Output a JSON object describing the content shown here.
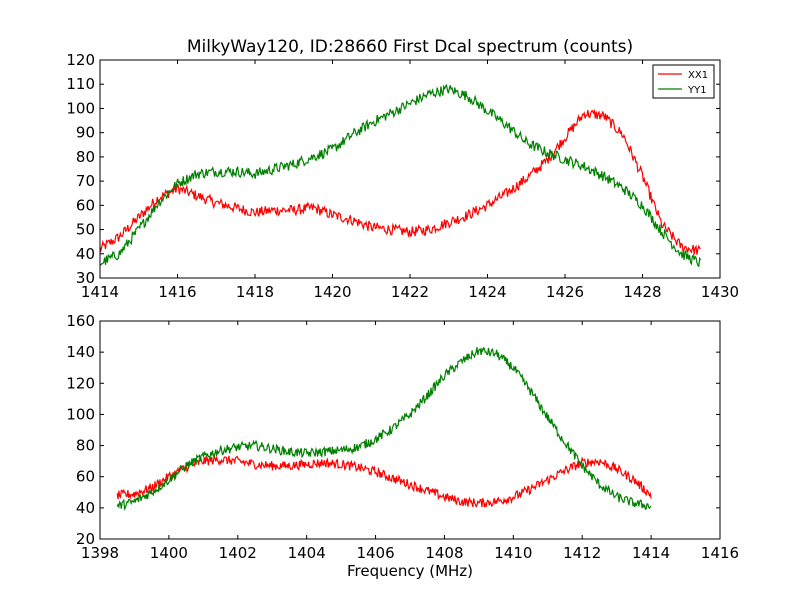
{
  "title": "MilkyWay120, ID:28660 First Dcal spectrum (counts)",
  "chart_data": [
    {
      "type": "line",
      "title": "MilkyWay120, ID:28660 First Dcal spectrum (counts)",
      "xlabel": "",
      "ylabel": "",
      "xlim": [
        1414,
        1430
      ],
      "ylim": [
        30,
        120
      ],
      "xticks": [
        1414,
        1416,
        1418,
        1420,
        1422,
        1424,
        1426,
        1428,
        1430
      ],
      "yticks": [
        30,
        40,
        50,
        60,
        70,
        80,
        90,
        100,
        110,
        120
      ],
      "grid": false,
      "legend": "top-right",
      "series": [
        {
          "name": "XX1",
          "color": "#ff0000",
          "x": [
            1414.0,
            1414.5,
            1415.0,
            1415.5,
            1416.0,
            1416.5,
            1417.0,
            1417.5,
            1418.0,
            1418.5,
            1419.0,
            1419.5,
            1420.0,
            1420.5,
            1421.0,
            1421.5,
            1422.0,
            1422.5,
            1423.0,
            1423.5,
            1424.0,
            1424.5,
            1425.0,
            1425.5,
            1426.0,
            1426.5,
            1427.0,
            1427.5,
            1428.0,
            1428.5,
            1429.0,
            1429.5
          ],
          "values": [
            42,
            47,
            55,
            63,
            67,
            64,
            61,
            59,
            57,
            58,
            58,
            59,
            56,
            54,
            51,
            50,
            49,
            50,
            53,
            56,
            60,
            65,
            71,
            78,
            88,
            98,
            97,
            89,
            72,
            52,
            43,
            41
          ]
        },
        {
          "name": "YY1",
          "color": "#008000",
          "x": [
            1414.0,
            1414.5,
            1415.0,
            1415.5,
            1416.0,
            1416.5,
            1417.0,
            1417.5,
            1418.0,
            1418.5,
            1419.0,
            1419.5,
            1420.0,
            1420.5,
            1421.0,
            1421.5,
            1422.0,
            1422.5,
            1423.0,
            1423.5,
            1424.0,
            1424.5,
            1425.0,
            1425.5,
            1426.0,
            1426.5,
            1427.0,
            1427.5,
            1428.0,
            1428.5,
            1429.0,
            1429.5
          ],
          "values": [
            36,
            40,
            50,
            61,
            69,
            73,
            74,
            74,
            73,
            75,
            77,
            80,
            83,
            89,
            94,
            98,
            102,
            106,
            108,
            105,
            99,
            93,
            86,
            82,
            79,
            76,
            72,
            67,
            60,
            49,
            40,
            36
          ]
        }
      ]
    },
    {
      "type": "line",
      "title": "",
      "xlabel": "Frequency (MHz)",
      "ylabel": "",
      "xlim": [
        1398,
        1416
      ],
      "ylim": [
        20,
        160
      ],
      "xticks": [
        1398,
        1400,
        1402,
        1404,
        1406,
        1408,
        1410,
        1412,
        1414,
        1416
      ],
      "yticks": [
        20,
        40,
        60,
        80,
        100,
        120,
        140,
        160
      ],
      "grid": false,
      "series": [
        {
          "color": "#ff0000",
          "x": [
            1398.5,
            1399.0,
            1399.5,
            1400.0,
            1400.5,
            1401.0,
            1401.5,
            1402.0,
            1402.5,
            1403.0,
            1403.5,
            1404.0,
            1404.5,
            1405.0,
            1405.5,
            1406.0,
            1406.5,
            1407.0,
            1407.5,
            1408.0,
            1408.5,
            1409.0,
            1409.5,
            1410.0,
            1410.5,
            1411.0,
            1411.5,
            1412.0,
            1412.5,
            1413.0,
            1413.5,
            1414.0
          ],
          "values": [
            48,
            49,
            53,
            60,
            66,
            70,
            71,
            70,
            68,
            67,
            67,
            68,
            69,
            68,
            66,
            63,
            59,
            55,
            51,
            47,
            44,
            43,
            44,
            47,
            52,
            58,
            64,
            69,
            70,
            65,
            58,
            48
          ]
        },
        {
          "color": "#008000",
          "x": [
            1398.5,
            1399.0,
            1399.5,
            1400.0,
            1400.5,
            1401.0,
            1401.5,
            1402.0,
            1402.5,
            1403.0,
            1403.5,
            1404.0,
            1404.5,
            1405.0,
            1405.5,
            1406.0,
            1406.5,
            1407.0,
            1407.5,
            1408.0,
            1408.5,
            1409.0,
            1409.5,
            1410.0,
            1410.5,
            1411.0,
            1411.5,
            1412.0,
            1412.5,
            1413.0,
            1413.5,
            1414.0
          ],
          "values": [
            41,
            44,
            50,
            58,
            67,
            73,
            77,
            79,
            80,
            78,
            76,
            75,
            76,
            77,
            79,
            84,
            91,
            100,
            112,
            125,
            134,
            141,
            139,
            130,
            115,
            98,
            82,
            67,
            55,
            47,
            43,
            41
          ]
        }
      ]
    }
  ]
}
